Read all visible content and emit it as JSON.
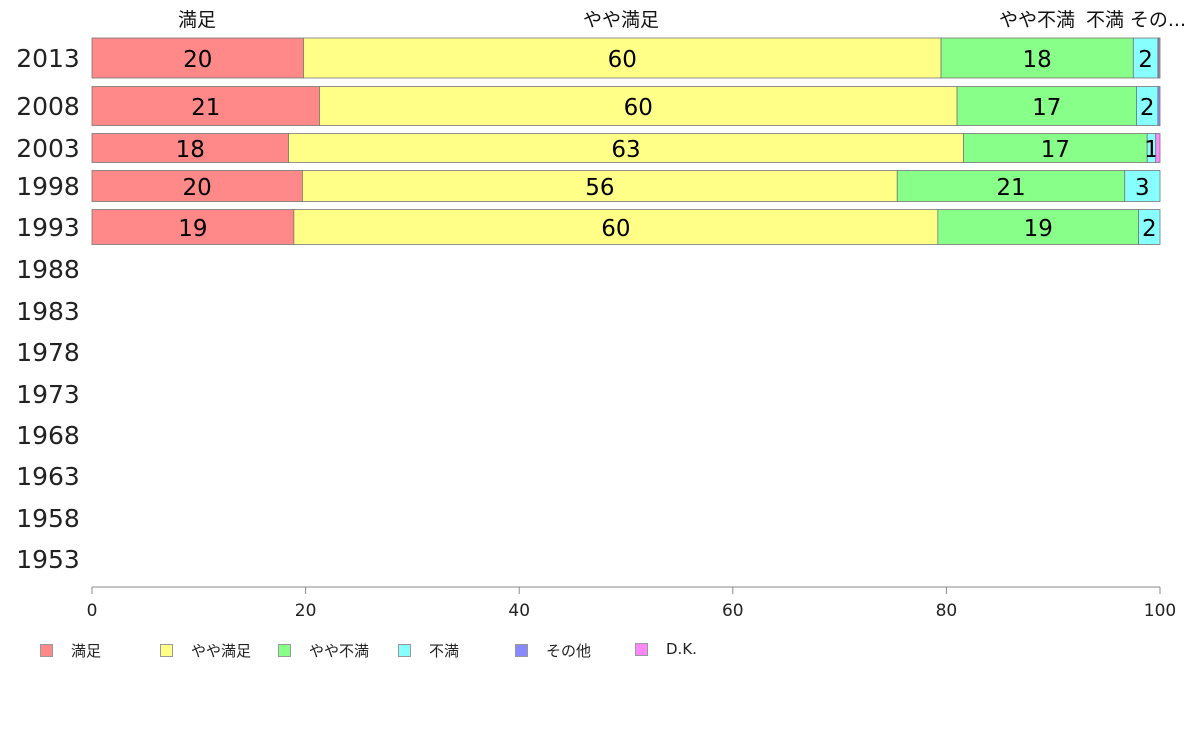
{
  "chart_data": {
    "type": "bar",
    "orientation": "horizontal",
    "stacked": true,
    "categories": [
      "2013",
      "2008",
      "2003",
      "1998",
      "1993",
      "1988",
      "1983",
      "1978",
      "1973",
      "1968",
      "1963",
      "1958",
      "1953"
    ],
    "series": [
      {
        "name": "満足",
        "color": "#ff8888",
        "values": [
          19.8,
          21.3,
          18.4,
          19.7,
          18.9,
          null,
          null,
          null,
          null,
          null,
          null,
          null,
          null
        ]
      },
      {
        "name": "やや満足",
        "color": "#ffff88",
        "values": [
          59.7,
          59.7,
          63.2,
          55.7,
          60.3,
          null,
          null,
          null,
          null,
          null,
          null,
          null,
          null
        ]
      },
      {
        "name": "やや不満",
        "color": "#88ff88",
        "values": [
          18.0,
          16.8,
          17.2,
          21.3,
          18.8,
          null,
          null,
          null,
          null,
          null,
          null,
          null,
          null
        ]
      },
      {
        "name": "不満",
        "color": "#88ffff",
        "values": [
          2.3,
          2.0,
          0.8,
          3.3,
          2.0,
          null,
          null,
          null,
          null,
          null,
          null,
          null,
          null
        ]
      },
      {
        "name": "その他",
        "color": "#8888ff",
        "values": [
          0.1,
          0.2,
          0.0,
          0.0,
          0.0,
          null,
          null,
          null,
          null,
          null,
          null,
          null,
          null
        ]
      },
      {
        "name": "D.K.",
        "color": "#ff88ff",
        "values": [
          0.1,
          0.0,
          0.4,
          0.0,
          0.0,
          null,
          null,
          null,
          null,
          null,
          null,
          null,
          null
        ]
      }
    ],
    "data_labels": [
      [
        "20",
        "60",
        "18",
        "2"
      ],
      [
        "21",
        "60",
        "17",
        "2"
      ],
      [
        "18",
        "63",
        "17",
        "1"
      ],
      [
        "20",
        "56",
        "21",
        "3"
      ],
      [
        "19",
        "60",
        "19",
        "2"
      ]
    ],
    "top_labels": [
      "満足",
      "やや満足",
      "やや不満",
      "不満",
      "その..."
    ],
    "xlim": [
      0,
      100
    ],
    "xticks": [
      "0",
      "20",
      "40",
      "60",
      "80",
      "100"
    ],
    "legend_position": "bottom-left"
  }
}
